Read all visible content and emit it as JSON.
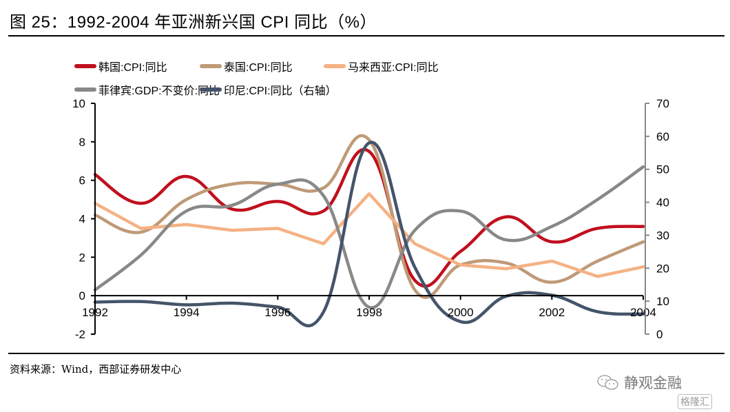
{
  "header": {
    "title": "图 25：1992-2004 年亚洲新兴国 CPI 同比（%）"
  },
  "footer": {
    "source": "资料来源：Wind，西部证券研发中心",
    "watermark": "静观金融",
    "watermark2": "格隆汇"
  },
  "chart_data": {
    "type": "line",
    "title": "1992-2004 年亚洲新兴国 CPI 同比（%）",
    "xlabel": "",
    "ylabel": "",
    "x": [
      1992,
      1993,
      1994,
      1995,
      1996,
      1997,
      1998,
      1999,
      2000,
      2001,
      2002,
      2003,
      2004
    ],
    "x_tick_labels": [
      "1992",
      "1994",
      "1996",
      "1998",
      "2000",
      "2002",
      "2004"
    ],
    "x_ticks": [
      1992,
      1994,
      1996,
      1998,
      2000,
      2002,
      2004
    ],
    "ylim": [
      -2,
      10
    ],
    "y_ticks": [
      -2,
      0,
      2,
      4,
      6,
      8,
      10
    ],
    "y_tick_labels": [
      "-2",
      "0",
      "2",
      "4",
      "6",
      "8",
      "10"
    ],
    "y2lim": [
      0,
      70
    ],
    "y2_ticks": [
      0,
      10,
      20,
      30,
      40,
      50,
      60,
      70
    ],
    "y2_tick_labels": [
      "0",
      "10",
      "20",
      "30",
      "40",
      "50",
      "60",
      "70"
    ],
    "grid": false,
    "legend_position": "top",
    "series": [
      {
        "name": "韩国:CPI:同比",
        "color": "#C0101E",
        "axis": "left",
        "smooth": true,
        "values": [
          6.3,
          4.8,
          6.2,
          4.5,
          4.9,
          4.4,
          7.5,
          0.8,
          2.3,
          4.1,
          2.8,
          3.5,
          3.6
        ]
      },
      {
        "name": "泰国:CPI:同比",
        "color": "#BF9A77",
        "axis": "left",
        "smooth": true,
        "values": [
          4.2,
          3.3,
          5.0,
          5.8,
          5.8,
          5.6,
          8.1,
          0.3,
          1.6,
          1.7,
          0.7,
          1.8,
          2.8
        ]
      },
      {
        "name": "马来西亚:CPI:同比",
        "color": "#F5B183",
        "axis": "left",
        "smooth": false,
        "values": [
          4.8,
          3.5,
          3.7,
          3.4,
          3.5,
          2.7,
          5.3,
          2.7,
          1.6,
          1.4,
          1.8,
          1.0,
          1.5
        ]
      },
      {
        "name": "菲律宾:GDP:不变价:同比",
        "color": "#888888",
        "axis": "left",
        "smooth": true,
        "values": [
          0.3,
          2.1,
          4.4,
          4.7,
          5.8,
          5.2,
          -0.6,
          3.4,
          4.4,
          2.9,
          3.6,
          5.0,
          6.7
        ]
      },
      {
        "name": "印尼:CPI:同比（右轴）",
        "color": "#44546A",
        "axis": "right",
        "smooth": true,
        "values": [
          9.7,
          9.9,
          8.9,
          9.4,
          8.2,
          6.7,
          58.0,
          20.3,
          3.8,
          11.5,
          11.8,
          6.8,
          6.1
        ]
      }
    ]
  }
}
